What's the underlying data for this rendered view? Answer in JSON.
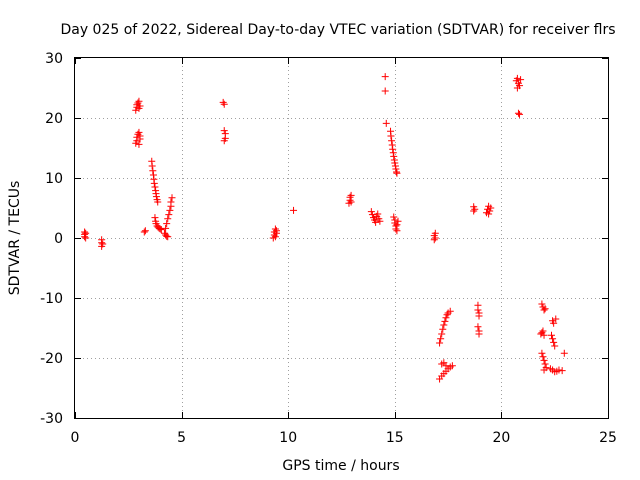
{
  "chart_data": {
    "type": "scatter",
    "title": "Day 025 of 2022, Sidereal Day-to-day VTEC variation (SDTVAR) for receiver flrs",
    "xlabel": "GPS time / hours",
    "ylabel": "SDTVAR / TECUs",
    "xlim": [
      0,
      25
    ],
    "ylim": [
      -30,
      30
    ],
    "xticks": [
      0,
      5,
      10,
      15,
      20,
      25
    ],
    "xtick_labels": [
      "0",
      "5",
      "10",
      "15",
      "20",
      "25"
    ],
    "yticks": [
      -30,
      -20,
      -10,
      0,
      10,
      20,
      30
    ],
    "ytick_labels": [
      "-30",
      "-20",
      "-10",
      "0",
      "10",
      "20",
      "30"
    ],
    "grid": true,
    "marker": "+",
    "color": "#ff0000",
    "series": [
      {
        "name": "SDTVAR",
        "points": [
          [
            0.45,
            0.2
          ],
          [
            0.45,
            0.6
          ],
          [
            0.45,
            1.0
          ],
          [
            0.5,
            0.0
          ],
          [
            0.5,
            0.8
          ],
          [
            1.25,
            -1.4
          ],
          [
            1.25,
            -0.8
          ],
          [
            1.25,
            -0.3
          ],
          [
            1.3,
            -1.0
          ],
          [
            2.85,
            21.3
          ],
          [
            2.9,
            21.8
          ],
          [
            2.9,
            22.2
          ],
          [
            2.95,
            22.5
          ],
          [
            3.0,
            22.8
          ],
          [
            3.0,
            21.6
          ],
          [
            3.05,
            22.0
          ],
          [
            2.85,
            15.8
          ],
          [
            2.9,
            16.2
          ],
          [
            2.9,
            16.8
          ],
          [
            2.95,
            17.3
          ],
          [
            3.0,
            17.6
          ],
          [
            3.0,
            15.6
          ],
          [
            3.05,
            16.5
          ],
          [
            3.05,
            17.0
          ],
          [
            3.25,
            1.0
          ],
          [
            3.3,
            1.2
          ],
          [
            3.6,
            12.8
          ],
          [
            3.62,
            12.0
          ],
          [
            3.65,
            11.2
          ],
          [
            3.68,
            10.5
          ],
          [
            3.7,
            9.8
          ],
          [
            3.72,
            9.1
          ],
          [
            3.75,
            8.5
          ],
          [
            3.78,
            7.9
          ],
          [
            3.8,
            7.4
          ],
          [
            3.82,
            6.9
          ],
          [
            3.85,
            6.4
          ],
          [
            3.88,
            6.0
          ],
          [
            3.75,
            3.4
          ],
          [
            3.78,
            2.8
          ],
          [
            3.8,
            2.4
          ],
          [
            3.85,
            2.0
          ],
          [
            3.9,
            1.8
          ],
          [
            3.95,
            1.6
          ],
          [
            4.0,
            1.5
          ],
          [
            4.05,
            1.4
          ],
          [
            4.2,
            0.8
          ],
          [
            4.25,
            0.5
          ],
          [
            4.3,
            0.3
          ],
          [
            4.35,
            0.2
          ],
          [
            4.25,
            1.6
          ],
          [
            4.3,
            2.4
          ],
          [
            4.35,
            3.2
          ],
          [
            4.4,
            3.9
          ],
          [
            4.45,
            4.6
          ],
          [
            4.5,
            5.3
          ],
          [
            4.5,
            6.0
          ],
          [
            4.55,
            6.7
          ],
          [
            6.95,
            22.6
          ],
          [
            7.0,
            22.3
          ],
          [
            7.0,
            17.9
          ],
          [
            7.05,
            17.4
          ],
          [
            7.0,
            16.2
          ],
          [
            7.05,
            16.6
          ],
          [
            9.3,
            0.0
          ],
          [
            9.35,
            0.5
          ],
          [
            9.35,
            1.0
          ],
          [
            9.4,
            1.5
          ],
          [
            9.4,
            0.2
          ],
          [
            9.45,
            0.8
          ],
          [
            9.45,
            1.2
          ],
          [
            10.25,
            4.6
          ],
          [
            12.85,
            5.8
          ],
          [
            12.9,
            6.3
          ],
          [
            12.9,
            6.8
          ],
          [
            12.95,
            7.1
          ],
          [
            12.95,
            6.0
          ],
          [
            13.9,
            4.4
          ],
          [
            13.95,
            3.9
          ],
          [
            14.0,
            3.4
          ],
          [
            14.05,
            3.0
          ],
          [
            14.1,
            2.6
          ],
          [
            14.15,
            3.6
          ],
          [
            14.2,
            4.0
          ],
          [
            14.25,
            3.2
          ],
          [
            14.3,
            2.8
          ],
          [
            14.55,
            26.9
          ],
          [
            14.55,
            24.5
          ],
          [
            14.6,
            19.1
          ],
          [
            14.8,
            17.8
          ],
          [
            14.82,
            17.0
          ],
          [
            14.85,
            16.2
          ],
          [
            14.88,
            15.5
          ],
          [
            14.9,
            14.8
          ],
          [
            14.93,
            14.2
          ],
          [
            14.95,
            13.6
          ],
          [
            14.98,
            13.0
          ],
          [
            15.0,
            12.5
          ],
          [
            15.03,
            12.0
          ],
          [
            15.05,
            11.5
          ],
          [
            15.08,
            11.0
          ],
          [
            15.1,
            10.8
          ],
          [
            14.95,
            3.5
          ],
          [
            15.0,
            3.0
          ],
          [
            15.0,
            2.5
          ],
          [
            15.05,
            2.0
          ],
          [
            15.05,
            1.5
          ],
          [
            15.1,
            1.2
          ],
          [
            15.1,
            2.2
          ],
          [
            15.15,
            2.8
          ],
          [
            16.85,
            -0.3
          ],
          [
            16.85,
            0.4
          ],
          [
            16.9,
            0.8
          ],
          [
            16.9,
            0.0
          ],
          [
            17.1,
            -17.5
          ],
          [
            17.15,
            -16.8
          ],
          [
            17.2,
            -16.0
          ],
          [
            17.25,
            -15.2
          ],
          [
            17.3,
            -14.5
          ],
          [
            17.35,
            -13.9
          ],
          [
            17.4,
            -13.3
          ],
          [
            17.45,
            -12.8
          ],
          [
            17.5,
            -12.5
          ],
          [
            17.6,
            -12.2
          ],
          [
            17.1,
            -23.5
          ],
          [
            17.2,
            -23.0
          ],
          [
            17.3,
            -22.6
          ],
          [
            17.4,
            -22.2
          ],
          [
            17.5,
            -21.8
          ],
          [
            17.6,
            -21.5
          ],
          [
            17.7,
            -21.3
          ],
          [
            17.2,
            -21.0
          ],
          [
            17.3,
            -20.8
          ],
          [
            17.4,
            -21.3
          ],
          [
            18.7,
            4.5
          ],
          [
            18.7,
            5.2
          ],
          [
            18.75,
            4.8
          ],
          [
            18.9,
            -11.2
          ],
          [
            18.9,
            -12.0
          ],
          [
            18.95,
            -12.5
          ],
          [
            18.95,
            -13.0
          ],
          [
            18.9,
            -14.8
          ],
          [
            18.95,
            -15.5
          ],
          [
            18.95,
            -16.0
          ],
          [
            19.3,
            4.2
          ],
          [
            19.35,
            4.8
          ],
          [
            19.4,
            5.3
          ],
          [
            19.45,
            4.5
          ],
          [
            19.5,
            5.0
          ],
          [
            19.4,
            4.0
          ],
          [
            20.7,
            26.2
          ],
          [
            20.75,
            26.6
          ],
          [
            20.8,
            25.8
          ],
          [
            20.85,
            25.4
          ],
          [
            20.9,
            26.4
          ],
          [
            20.75,
            25.0
          ],
          [
            20.8,
            20.8
          ],
          [
            20.85,
            20.6
          ],
          [
            21.9,
            -11.0
          ],
          [
            21.95,
            -11.5
          ],
          [
            22.0,
            -12.0
          ],
          [
            22.05,
            -11.8
          ],
          [
            21.85,
            -16.0
          ],
          [
            21.9,
            -15.8
          ],
          [
            21.95,
            -15.5
          ],
          [
            22.0,
            -16.2
          ],
          [
            21.9,
            -19.2
          ],
          [
            21.95,
            -19.8
          ],
          [
            22.0,
            -20.4
          ],
          [
            22.05,
            -21.0
          ],
          [
            22.1,
            -21.6
          ],
          [
            22.0,
            -22.0
          ],
          [
            22.4,
            -13.8
          ],
          [
            22.45,
            -14.2
          ],
          [
            22.55,
            -13.5
          ],
          [
            22.35,
            -16.2
          ],
          [
            22.4,
            -16.8
          ],
          [
            22.45,
            -17.4
          ],
          [
            22.5,
            -18.0
          ],
          [
            22.3,
            -21.8
          ],
          [
            22.4,
            -22.0
          ],
          [
            22.5,
            -22.3
          ],
          [
            22.6,
            -22.2
          ],
          [
            22.7,
            -22.0
          ],
          [
            22.85,
            -22.1
          ],
          [
            22.95,
            -19.2
          ]
        ]
      }
    ]
  }
}
